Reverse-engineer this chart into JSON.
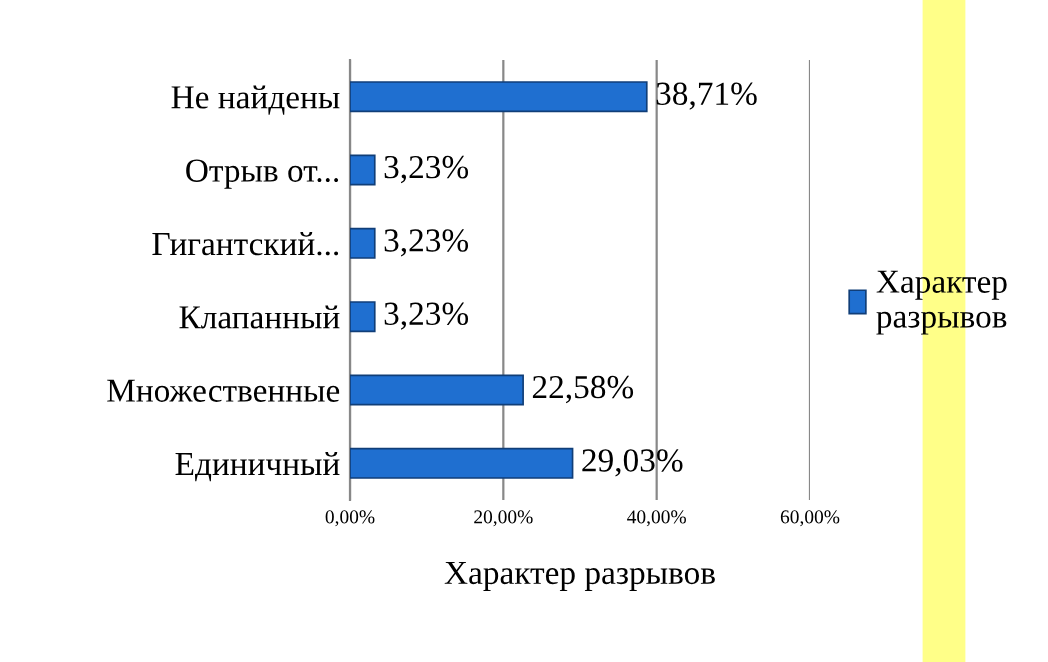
{
  "chart_data": {
    "type": "bar",
    "orientation": "horizontal",
    "xlabel": "Характер разрывов",
    "categories": [
      "Не найдены",
      "Отрыв от...",
      "Гигантский...",
      "Клапанный",
      "Множественные",
      "Единичный"
    ],
    "series": [
      {
        "name": "Характер\nразрывов",
        "color": "#1f6fd0",
        "values": [
          38.71,
          3.23,
          3.23,
          3.23,
          22.58,
          29.03
        ],
        "value_labels": [
          "38,71%",
          "3,23%",
          "3,23%",
          "3,23%",
          "22,58%",
          "29,03%"
        ]
      }
    ],
    "xlim": [
      0,
      60
    ],
    "xticks": [
      {
        "value": 0,
        "label": "0,00%"
      },
      {
        "value": 20,
        "label": "20,00%"
      },
      {
        "value": 40,
        "label": "40,00%"
      },
      {
        "value": 60,
        "label": "60,00%"
      }
    ],
    "grid": "x",
    "legend": "right"
  }
}
